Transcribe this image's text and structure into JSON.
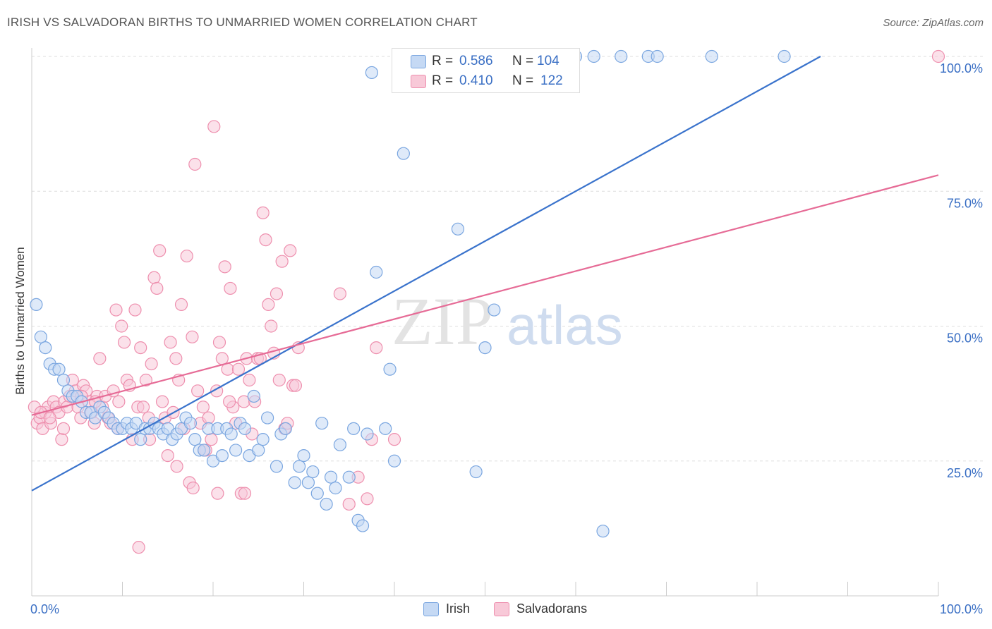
{
  "title": "IRISH VS SALVADORAN BIRTHS TO UNMARRIED WOMEN CORRELATION CHART",
  "source": "Source: ZipAtlas.com",
  "watermark": {
    "zip": "ZIP",
    "atlas": "atlas"
  },
  "stats": [
    {
      "r_label": "R =",
      "r_value": "0.586",
      "n_label": "N =",
      "n_value": "104",
      "color": "#7aa6e0",
      "fill": "#c5d9f4"
    },
    {
      "r_label": "R =",
      "r_value": "0.410",
      "n_label": "N =",
      "n_value": "122",
      "color": "#ee8fae",
      "fill": "#f8c9d8"
    }
  ],
  "legend": [
    {
      "label": "Irish",
      "color": "#7aa6e0",
      "fill": "#c5d9f4"
    },
    {
      "label": "Salvadorans",
      "color": "#ee8fae",
      "fill": "#f8c9d8"
    }
  ],
  "chart_data": {
    "type": "scatter",
    "title": "IRISH VS SALVADORAN BIRTHS TO UNMARRIED WOMEN CORRELATION CHART",
    "xlabel": "",
    "ylabel": "Births to Unmarried Women",
    "xlim": [
      0,
      100
    ],
    "ylim": [
      0,
      100
    ],
    "x_tick_labels": [
      "0.0%",
      "100.0%"
    ],
    "y_tick_labels": [
      "25.0%",
      "50.0%",
      "75.0%",
      "100.0%"
    ],
    "y_ticks": [
      25,
      50,
      75,
      100
    ],
    "grid": true,
    "legend_position": "bottom",
    "series": [
      {
        "name": "Irish",
        "color": "#3a73cc",
        "marker_fill": "#c5d9f4",
        "marker_stroke": "#7aa6e0",
        "trend": [
          [
            0,
            19.5
          ],
          [
            87,
            100
          ]
        ],
        "points": [
          [
            0.5,
            54
          ],
          [
            1,
            48
          ],
          [
            1.5,
            46
          ],
          [
            2,
            43
          ],
          [
            2.5,
            42
          ],
          [
            3,
            42
          ],
          [
            3.5,
            40
          ],
          [
            4,
            38
          ],
          [
            4.5,
            37
          ],
          [
            5,
            37
          ],
          [
            5.5,
            36
          ],
          [
            6,
            34
          ],
          [
            6.5,
            34
          ],
          [
            7,
            33
          ],
          [
            7.5,
            35
          ],
          [
            8,
            34
          ],
          [
            8.5,
            33
          ],
          [
            9,
            32
          ],
          [
            9.5,
            31
          ],
          [
            10,
            31
          ],
          [
            10.5,
            32
          ],
          [
            11,
            31
          ],
          [
            11.5,
            32
          ],
          [
            12,
            29
          ],
          [
            12.5,
            31
          ],
          [
            13,
            31
          ],
          [
            13.5,
            32
          ],
          [
            14,
            31
          ],
          [
            14.5,
            30
          ],
          [
            15,
            31
          ],
          [
            15.5,
            29
          ],
          [
            16,
            30
          ],
          [
            16.5,
            31
          ],
          [
            17,
            33
          ],
          [
            17.5,
            32
          ],
          [
            18,
            29
          ],
          [
            18.5,
            27
          ],
          [
            19,
            27
          ],
          [
            19.5,
            31
          ],
          [
            20,
            25
          ],
          [
            20.5,
            31
          ],
          [
            21,
            26
          ],
          [
            21.5,
            31
          ],
          [
            22,
            30
          ],
          [
            22.5,
            27
          ],
          [
            23,
            32
          ],
          [
            23.5,
            31
          ],
          [
            24,
            26
          ],
          [
            24.5,
            37
          ],
          [
            25,
            27
          ],
          [
            25.5,
            29
          ],
          [
            26,
            33
          ],
          [
            27,
            24
          ],
          [
            27.5,
            30
          ],
          [
            28,
            31
          ],
          [
            29,
            21
          ],
          [
            29.5,
            24
          ],
          [
            30,
            26
          ],
          [
            30.5,
            21
          ],
          [
            31,
            23
          ],
          [
            31.5,
            19
          ],
          [
            32,
            32
          ],
          [
            32.5,
            17
          ],
          [
            33,
            22
          ],
          [
            33.5,
            20
          ],
          [
            34,
            28
          ],
          [
            35,
            22
          ],
          [
            35.5,
            31
          ],
          [
            36,
            14
          ],
          [
            36.5,
            13
          ],
          [
            37,
            30
          ],
          [
            37.5,
            97
          ],
          [
            38,
            60
          ],
          [
            39,
            31
          ],
          [
            39.5,
            42
          ],
          [
            40,
            25
          ],
          [
            41,
            82
          ],
          [
            42,
            100
          ],
          [
            43,
            100
          ],
          [
            44,
            100
          ],
          [
            45,
            100
          ],
          [
            46,
            100
          ],
          [
            47,
            68
          ],
          [
            48,
            100
          ],
          [
            49,
            23
          ],
          [
            50,
            46
          ],
          [
            51,
            53
          ],
          [
            52,
            100
          ],
          [
            54,
            100
          ],
          [
            57,
            100
          ],
          [
            58,
            100
          ],
          [
            60,
            100
          ],
          [
            63,
            12
          ],
          [
            65,
            100
          ],
          [
            68,
            100
          ],
          [
            69,
            100
          ],
          [
            75,
            100
          ],
          [
            83,
            100
          ],
          [
            50.5,
            100
          ],
          [
            59,
            100
          ],
          [
            62,
            100
          ],
          [
            44.5,
            100
          ],
          [
            55,
            100
          ]
        ]
      },
      {
        "name": "Salvadorans",
        "color": "#e66b96",
        "marker_fill": "#f8c9d8",
        "marker_stroke": "#ee8fae",
        "trend": [
          [
            0,
            33.5
          ],
          [
            100,
            78
          ]
        ],
        "points": [
          [
            0.3,
            35
          ],
          [
            0.6,
            32
          ],
          [
            0.9,
            33
          ],
          [
            1.2,
            31
          ],
          [
            1.5,
            34
          ],
          [
            1.8,
            35
          ],
          [
            2.1,
            32
          ],
          [
            2.4,
            36
          ],
          [
            2.7,
            35
          ],
          [
            3,
            34
          ],
          [
            3.3,
            29
          ],
          [
            3.6,
            36
          ],
          [
            3.9,
            35
          ],
          [
            4.2,
            37
          ],
          [
            4.5,
            40
          ],
          [
            4.8,
            38
          ],
          [
            5.1,
            35
          ],
          [
            5.4,
            33
          ],
          [
            5.7,
            39
          ],
          [
            6,
            38
          ],
          [
            6.3,
            36
          ],
          [
            6.6,
            34
          ],
          [
            6.9,
            32
          ],
          [
            7.2,
            37
          ],
          [
            7.5,
            44
          ],
          [
            7.8,
            35
          ],
          [
            8.1,
            37
          ],
          [
            8.4,
            33
          ],
          [
            8.7,
            32
          ],
          [
            9,
            38
          ],
          [
            9.3,
            53
          ],
          [
            9.6,
            36
          ],
          [
            9.9,
            50
          ],
          [
            10.2,
            47
          ],
          [
            10.5,
            40
          ],
          [
            10.8,
            39
          ],
          [
            11.1,
            29
          ],
          [
            11.4,
            53
          ],
          [
            11.7,
            35
          ],
          [
            12,
            46
          ],
          [
            12.3,
            35
          ],
          [
            12.6,
            40
          ],
          [
            12.9,
            33
          ],
          [
            13.2,
            43
          ],
          [
            13.5,
            59
          ],
          [
            13.8,
            57
          ],
          [
            14.1,
            64
          ],
          [
            14.4,
            36
          ],
          [
            14.7,
            33
          ],
          [
            15,
            26
          ],
          [
            15.3,
            47
          ],
          [
            15.6,
            34
          ],
          [
            15.9,
            44
          ],
          [
            16.2,
            40
          ],
          [
            16.5,
            54
          ],
          [
            16.8,
            31
          ],
          [
            17.1,
            63
          ],
          [
            17.4,
            21
          ],
          [
            17.7,
            48
          ],
          [
            18,
            80
          ],
          [
            18.3,
            38
          ],
          [
            18.6,
            32
          ],
          [
            18.9,
            35
          ],
          [
            19.2,
            27
          ],
          [
            19.5,
            33
          ],
          [
            19.8,
            29
          ],
          [
            20.1,
            87
          ],
          [
            20.4,
            38
          ],
          [
            20.7,
            47
          ],
          [
            21,
            44
          ],
          [
            21.3,
            61
          ],
          [
            21.6,
            42
          ],
          [
            21.9,
            57
          ],
          [
            22.2,
            35
          ],
          [
            22.5,
            32
          ],
          [
            22.8,
            42
          ],
          [
            23.1,
            19
          ],
          [
            23.4,
            36
          ],
          [
            23.7,
            44
          ],
          [
            24,
            40
          ],
          [
            24.3,
            30
          ],
          [
            24.6,
            36
          ],
          [
            24.9,
            44
          ],
          [
            25.2,
            44
          ],
          [
            25.5,
            71
          ],
          [
            25.8,
            66
          ],
          [
            26.1,
            54
          ],
          [
            26.4,
            50
          ],
          [
            26.7,
            45
          ],
          [
            27,
            56
          ],
          [
            27.3,
            40
          ],
          [
            27.6,
            62
          ],
          [
            27.9,
            31
          ],
          [
            28.2,
            32
          ],
          [
            28.5,
            64
          ],
          [
            28.8,
            39
          ],
          [
            29.1,
            39
          ],
          [
            29.4,
            46
          ],
          [
            34,
            56
          ],
          [
            35,
            17
          ],
          [
            36,
            22
          ],
          [
            37,
            18
          ],
          [
            37.5,
            29
          ],
          [
            38,
            46
          ],
          [
            40,
            29
          ],
          [
            7,
            36
          ],
          [
            9.5,
            31
          ],
          [
            11.8,
            9
          ],
          [
            13,
            29
          ],
          [
            16,
            24
          ],
          [
            17.8,
            20
          ],
          [
            19,
            27
          ],
          [
            20.5,
            19
          ],
          [
            21.8,
            36
          ],
          [
            23.5,
            19
          ],
          [
            100,
            100
          ],
          [
            1,
            34
          ],
          [
            2,
            33
          ],
          [
            3.5,
            31
          ],
          [
            5.5,
            37
          ]
        ]
      }
    ]
  }
}
